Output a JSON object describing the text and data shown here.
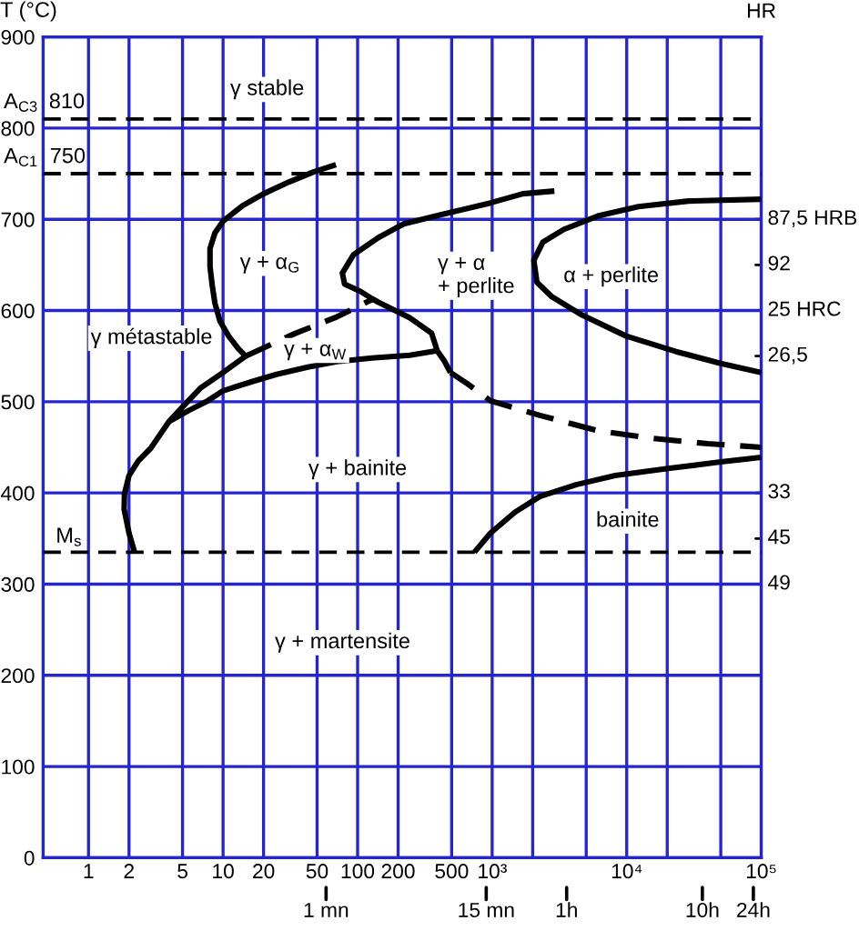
{
  "chart_data": {
    "type": "line",
    "ylabel": "T (°C)",
    "y2label": "HR",
    "log": "x",
    "grid": true,
    "xlim": [
      0.46,
      100000
    ],
    "xticks": [
      1,
      2,
      5,
      10,
      20,
      50,
      100,
      200,
      500,
      {
        "value": 1000,
        "label": "10³"
      },
      {
        "value": 2000,
        "label": null
      },
      {
        "value": 5000,
        "label": null
      },
      {
        "value": 10000,
        "label": "10⁴"
      },
      {
        "value": 20000,
        "label": null
      },
      {
        "value": 50000,
        "label": null
      },
      {
        "value": 100000,
        "label": "10⁵"
      }
    ],
    "ylim": [
      0,
      900
    ],
    "yticks": [
      0,
      100,
      200,
      300,
      400,
      500,
      600,
      700,
      800,
      900
    ],
    "ref_lines": [
      {
        "axis": "y",
        "value": 810,
        "label": "A$_{C3}$",
        "color": "#000000",
        "line_style": "dashed"
      },
      {
        "axis": "y",
        "value": 750,
        "label": "A$_{C1}$",
        "color": "#000000",
        "line_style": "dashed"
      },
      {
        "axis": "y",
        "value": 335,
        "label": "M$_{s}$",
        "color": "#000000",
        "line_style": "dashed"
      }
    ],
    "series": [
      {
        "color": "#000000",
        "line_style": "solid",
        "x": [
          69,
          47,
          31,
          20,
          14,
          10,
          8.7,
          8,
          8,
          8.3,
          8.7,
          9.5,
          11,
          13,
          14.7
        ],
        "values": [
          760,
          752,
          741,
          728,
          715,
          698,
          685,
          668,
          648,
          628,
          608,
          588,
          572,
          558,
          550
        ]
      },
      {
        "color": "#000000",
        "line_style": "solid",
        "x": [
          2.2,
          2,
          1.84,
          1.85,
          2,
          2.34,
          2.9,
          3.95,
          5.2,
          6.8,
          10,
          14.7
        ],
        "values": [
          335,
          356,
          382,
          399,
          419,
          435,
          449,
          478,
          497,
          515,
          532,
          550
        ]
      },
      {
        "color": "#000000",
        "line_style": "solid",
        "x": [
          3.95,
          5.5,
          7.5,
          10,
          16.4,
          25,
          42.7,
          70,
          128,
          244,
          390
        ],
        "values": [
          478,
          490,
          500,
          512,
          522,
          530,
          538,
          544,
          548,
          551,
          556
        ]
      },
      {
        "color": "#000000",
        "line_style": "dashed",
        "x": [
          14.7,
          34.5,
          70,
          128
        ],
        "values": [
          550,
          575,
          593,
          612
        ]
      },
      {
        "color": "#000000",
        "line_style": "solid",
        "x": [
          2900,
          1690,
          972,
          414,
          220,
          143,
          93,
          77,
          80,
          105,
          128,
          143,
          244,
          355,
          390,
          440,
          490
        ],
        "values": [
          731,
          728,
          718,
          705,
          695,
          680,
          661,
          641,
          629,
          621,
          613,
          609,
          592,
          575,
          556,
          545,
          532
        ]
      },
      {
        "color": "#000000",
        "line_style": "dashed",
        "x": [
          490,
          650,
          972,
          2260,
          6210,
          15150,
          40000,
          100000
        ],
        "values": [
          532,
          520,
          501,
          485,
          468,
          460,
          454,
          450
        ]
      },
      {
        "color": "#000000",
        "line_style": "solid",
        "x": [
          100000,
          28800,
          12230,
          6210,
          3420,
          2380,
          2040,
          2150,
          2780,
          4660,
          9910,
          23250,
          50000,
          100000
        ],
        "values": [
          722,
          720,
          714,
          704,
          689,
          675,
          655,
          631,
          615,
          595,
          572,
          555,
          542,
          532
        ]
      },
      {
        "color": "#000000",
        "line_style": "solid",
        "x": [
          738,
          973,
          1480,
          2260,
          4200,
          8220,
          20900,
          50000,
          100000
        ],
        "values": [
          335,
          356,
          379,
          396,
          409,
          419,
          427,
          434,
          439
        ]
      }
    ],
    "annotations": [
      {
        "text": "810",
        "x": 0.69,
        "y": 810
      },
      {
        "text": "750",
        "x": 0.7,
        "y": 750
      },
      "γ stable",
      "γ + α$_{G}$",
      "γ métastable",
      "γ + α$_{W}$",
      "γ + α\n+ perlite",
      "α + perlite",
      "γ + bainite",
      "bainite",
      "γ + martensite",
      "87,5 HRB",
      "92",
      "25 HRC",
      "26,5",
      "33",
      "45",
      "49",
      "1 mn",
      "15 mn",
      "1h",
      "10h",
      "24h"
    ]
  }
}
